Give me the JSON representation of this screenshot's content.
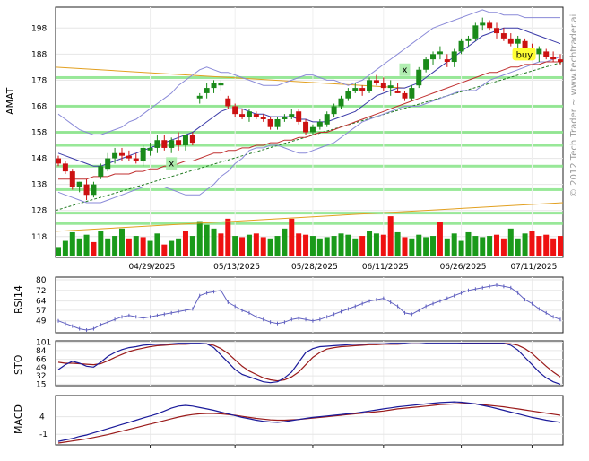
{
  "chart_data": {
    "type": "candlestick",
    "ticker": "AMAT",
    "copyright": "© 2012 Tech Trader ~ www.techtrader.ai",
    "dates": [
      "04/29/2025",
      "05/13/2025",
      "05/28/2025",
      "06/11/2025",
      "06/26/2025",
      "07/11/2025"
    ],
    "price_panel": {
      "ylabel": "AMAT",
      "yticks": [
        118,
        128,
        138,
        148,
        158,
        168,
        178,
        188,
        198
      ],
      "ylim": [
        110,
        206
      ],
      "candles": [
        [
          148,
          149,
          145,
          146
        ],
        [
          146,
          147,
          142,
          143
        ],
        [
          143,
          144,
          136,
          137
        ],
        [
          137,
          139,
          135,
          139
        ],
        [
          138,
          140,
          132,
          134
        ],
        [
          134,
          139,
          133,
          138
        ],
        [
          141,
          146,
          140,
          145
        ],
        [
          144,
          150,
          143,
          148
        ],
        [
          148,
          152,
          146,
          150
        ],
        [
          150,
          152,
          147,
          149
        ],
        [
          149,
          151,
          147,
          148
        ],
        [
          148,
          150,
          146,
          147
        ],
        [
          147,
          153,
          145,
          152
        ],
        [
          151,
          154,
          149,
          152
        ],
        [
          152,
          157,
          150,
          155
        ],
        [
          155,
          157,
          151,
          152
        ],
        [
          152,
          156,
          150,
          155
        ],
        [
          155,
          158,
          151,
          153
        ],
        [
          153,
          157,
          151,
          157
        ],
        [
          157,
          158,
          153,
          154
        ],
        [
          171,
          173,
          169,
          172
        ],
        [
          173,
          177,
          171,
          175
        ],
        [
          175,
          178,
          173,
          177
        ],
        [
          176,
          178,
          174,
          177
        ],
        [
          171,
          172,
          167,
          168
        ],
        [
          168,
          169,
          164,
          165
        ],
        [
          165,
          167,
          163,
          164
        ],
        [
          164,
          167,
          162,
          166
        ],
        [
          165,
          166,
          163,
          164
        ],
        [
          164,
          165,
          162,
          163
        ],
        [
          163,
          164,
          159,
          160
        ],
        [
          160,
          164,
          159,
          163
        ],
        [
          163,
          165,
          162,
          164
        ],
        [
          164,
          167,
          163,
          165
        ],
        [
          166,
          167,
          161,
          162
        ],
        [
          162,
          163,
          157,
          158
        ],
        [
          158,
          161,
          157,
          160
        ],
        [
          160,
          163,
          159,
          162
        ],
        [
          161,
          166,
          160,
          165
        ],
        [
          165,
          169,
          164,
          168
        ],
        [
          168,
          172,
          167,
          171
        ],
        [
          171,
          175,
          170,
          174
        ],
        [
          174,
          177,
          173,
          175
        ],
        [
          175,
          176,
          172,
          174
        ],
        [
          174,
          179,
          173,
          178
        ],
        [
          178,
          180,
          176,
          177
        ],
        [
          177,
          179,
          174,
          175
        ],
        [
          175,
          178,
          172,
          176
        ],
        [
          174,
          177,
          173,
          173
        ],
        [
          173,
          174,
          170,
          171
        ],
        [
          171,
          176,
          170,
          175
        ],
        [
          176,
          183,
          175,
          182
        ],
        [
          182,
          187,
          181,
          186
        ],
        [
          186,
          189,
          184,
          188
        ],
        [
          188,
          191,
          186,
          189
        ],
        [
          186,
          188,
          183,
          185
        ],
        [
          185,
          190,
          183,
          189
        ],
        [
          189,
          194,
          188,
          193
        ],
        [
          193,
          195,
          191,
          194
        ],
        [
          194,
          200,
          193,
          199
        ],
        [
          199,
          202,
          197,
          200
        ],
        [
          200,
          201,
          197,
          198
        ],
        [
          198,
          200,
          194,
          196
        ],
        [
          196,
          198,
          193,
          194
        ],
        [
          194,
          196,
          191,
          192
        ],
        [
          192,
          195,
          190,
          194
        ],
        [
          193,
          194,
          189,
          190
        ],
        [
          190,
          192,
          187,
          188
        ],
        [
          188,
          191,
          185,
          190
        ],
        [
          189,
          190,
          186,
          187
        ],
        [
          187,
          189,
          185,
          186
        ],
        [
          186,
          188,
          184,
          185
        ]
      ],
      "volume": [
        [
          7,
          0
        ],
        [
          12,
          0
        ],
        [
          19,
          0
        ],
        [
          14,
          0
        ],
        [
          17,
          0
        ],
        [
          11,
          1
        ],
        [
          20,
          0
        ],
        [
          14,
          0
        ],
        [
          16,
          0
        ],
        [
          22,
          0
        ],
        [
          14,
          1
        ],
        [
          16,
          0
        ],
        [
          15,
          1
        ],
        [
          12,
          0
        ],
        [
          18,
          0
        ],
        [
          9,
          1
        ],
        [
          12,
          0
        ],
        [
          14,
          0
        ],
        [
          20,
          1
        ],
        [
          16,
          0
        ],
        [
          28,
          0
        ],
        [
          25,
          0
        ],
        [
          22,
          0
        ],
        [
          18,
          1
        ],
        [
          30,
          1
        ],
        [
          16,
          0
        ],
        [
          15,
          1
        ],
        [
          17,
          0
        ],
        [
          18,
          1
        ],
        [
          15,
          1
        ],
        [
          14,
          0
        ],
        [
          16,
          0
        ],
        [
          22,
          0
        ],
        [
          30,
          1
        ],
        [
          18,
          1
        ],
        [
          17,
          1
        ],
        [
          16,
          0
        ],
        [
          14,
          0
        ],
        [
          15,
          0
        ],
        [
          16,
          0
        ],
        [
          18,
          0
        ],
        [
          17,
          0
        ],
        [
          14,
          0
        ],
        [
          16,
          1
        ],
        [
          20,
          0
        ],
        [
          18,
          0
        ],
        [
          17,
          1
        ],
        [
          32,
          1
        ],
        [
          19,
          0
        ],
        [
          15,
          1
        ],
        [
          14,
          0
        ],
        [
          17,
          0
        ],
        [
          15,
          0
        ],
        [
          16,
          0
        ],
        [
          27,
          1
        ],
        [
          14,
          0
        ],
        [
          18,
          0
        ],
        [
          12,
          0
        ],
        [
          19,
          0
        ],
        [
          16,
          0
        ],
        [
          15,
          0
        ],
        [
          16,
          0
        ],
        [
          17,
          1
        ],
        [
          14,
          1
        ],
        [
          22,
          0
        ],
        [
          14,
          0
        ],
        [
          18,
          0
        ],
        [
          20,
          1
        ],
        [
          16,
          1
        ],
        [
          17,
          1
        ],
        [
          14,
          1
        ],
        [
          16,
          1
        ]
      ],
      "sma_fast": [
        150,
        149,
        148,
        147,
        146,
        145,
        145,
        146,
        147,
        148,
        149,
        150,
        151,
        152,
        153,
        154,
        155,
        156,
        157,
        158,
        160,
        162,
        164,
        166,
        167,
        167,
        167,
        166,
        165,
        165,
        164,
        164,
        164,
        164,
        163,
        163,
        162,
        162,
        162,
        163,
        164,
        165,
        166,
        168,
        170,
        172,
        173,
        174,
        175,
        175,
        176,
        177,
        179,
        181,
        183,
        185,
        187,
        189,
        191,
        193,
        195,
        196,
        197,
        198,
        198,
        198,
        197,
        196,
        195,
        194,
        193,
        192
      ],
      "sma_slow": [
        140,
        140,
        140,
        140,
        140,
        141,
        141,
        141,
        142,
        142,
        142,
        143,
        143,
        144,
        144,
        145,
        145,
        146,
        147,
        147,
        148,
        149,
        150,
        150,
        151,
        151,
        152,
        152,
        153,
        153,
        154,
        154,
        155,
        155,
        156,
        156,
        157,
        158,
        158,
        159,
        160,
        161,
        162,
        163,
        164,
        165,
        166,
        167,
        168,
        169,
        170,
        171,
        172,
        173,
        174,
        175,
        176,
        177,
        178,
        179,
        180,
        181,
        181,
        182,
        183,
        183,
        184,
        184,
        184,
        185,
        185,
        185
      ],
      "bb_upper": [
        165,
        163,
        161,
        159,
        158,
        157,
        157,
        158,
        159,
        160,
        162,
        163,
        165,
        167,
        169,
        171,
        173,
        176,
        178,
        180,
        182,
        183,
        182,
        181,
        181,
        180,
        179,
        178,
        177,
        176,
        176,
        176,
        177,
        178,
        179,
        180,
        180,
        179,
        178,
        178,
        177,
        176,
        177,
        178,
        180,
        182,
        184,
        186,
        188,
        190,
        192,
        194,
        196,
        198,
        199,
        200,
        201,
        202,
        203,
        204,
        205,
        204,
        204,
        203,
        203,
        203,
        202,
        202,
        202,
        202,
        202,
        202
      ],
      "bb_lower": [
        135,
        134,
        133,
        132,
        131,
        131,
        131,
        132,
        133,
        134,
        135,
        136,
        137,
        137,
        137,
        137,
        136,
        135,
        134,
        134,
        134,
        136,
        138,
        141,
        143,
        146,
        148,
        151,
        152,
        152,
        153,
        153,
        152,
        151,
        150,
        150,
        151,
        152,
        153,
        154,
        156,
        158,
        160,
        162,
        163,
        164,
        165,
        166,
        167,
        168,
        168,
        168,
        169,
        170,
        171,
        172,
        173,
        174,
        174,
        174,
        176,
        178,
        179,
        180,
        181,
        182,
        183,
        184,
        185,
        185,
        186,
        187
      ],
      "trend_upper": {
        "from": 183,
        "to": 175
      },
      "trend_lower": {
        "from": 128,
        "to": 185
      },
      "trend_long": {
        "from": 120,
        "to": 131
      },
      "h_levels": [
        123,
        127,
        136,
        145,
        153,
        158,
        168,
        179
      ],
      "markers": [
        {
          "label": "x",
          "i": 16,
          "v": 146
        },
        {
          "label": "x",
          "i": 49,
          "v": 182
        },
        {
          "label": "buy",
          "i": 66,
          "v": 188
        }
      ]
    },
    "rsi_panel": {
      "ylabel": "RSI14",
      "yticks": [
        80,
        72,
        64,
        57,
        49
      ],
      "ylim": [
        40,
        82
      ],
      "values": [
        49,
        47,
        45,
        43,
        42,
        43,
        46,
        48,
        50,
        52,
        53,
        52,
        51,
        52,
        53,
        54,
        55,
        56,
        57,
        58,
        68,
        70,
        71,
        72,
        63,
        60,
        57,
        55,
        52,
        50,
        48,
        47,
        48,
        50,
        51,
        50,
        49,
        50,
        52,
        54,
        56,
        58,
        60,
        62,
        64,
        65,
        66,
        63,
        60,
        55,
        54,
        57,
        60,
        62,
        64,
        66,
        68,
        70,
        72,
        73,
        74,
        75,
        76,
        75,
        74,
        70,
        65,
        62,
        58,
        55,
        52,
        50
      ]
    },
    "sto_panel": {
      "ylabel": "STO",
      "yticks": [
        101,
        84,
        66,
        49,
        32,
        15
      ],
      "ylim": [
        12,
        104
      ],
      "k": [
        45,
        55,
        62,
        58,
        52,
        50,
        60,
        72,
        80,
        86,
        90,
        92,
        95,
        96,
        97,
        97,
        98,
        99,
        99,
        99,
        99,
        98,
        90,
        75,
        60,
        45,
        35,
        30,
        25,
        20,
        18,
        20,
        28,
        40,
        60,
        80,
        88,
        92,
        93,
        94,
        95,
        96,
        97,
        97,
        98,
        98,
        98,
        99,
        99,
        99,
        98,
        98,
        99,
        99,
        99,
        99,
        99,
        99,
        99,
        99,
        99,
        99,
        99,
        99,
        95,
        85,
        70,
        55,
        40,
        28,
        20,
        15
      ],
      "d": [
        60,
        58,
        58,
        57,
        56,
        55,
        57,
        63,
        70,
        76,
        82,
        86,
        89,
        92,
        94,
        95,
        96,
        97,
        97,
        98,
        98,
        98,
        95,
        88,
        78,
        65,
        52,
        42,
        35,
        28,
        24,
        22,
        24,
        30,
        40,
        55,
        70,
        80,
        87,
        90,
        92,
        93,
        94,
        95,
        96,
        96,
        97,
        97,
        97,
        98,
        98,
        98,
        98,
        98,
        98,
        98,
        98,
        99,
        99,
        99,
        99,
        99,
        99,
        99,
        98,
        95,
        88,
        78,
        65,
        52,
        40,
        30
      ]
    },
    "macd_panel": {
      "ylabel": "MACD",
      "yticks": [
        4,
        -1
      ],
      "ylim": [
        -4,
        10
      ],
      "macd": [
        -3,
        -2.6,
        -2.2,
        -1.6,
        -1.2,
        -0.6,
        0,
        0.6,
        1.2,
        1.8,
        2.4,
        3,
        3.6,
        4.2,
        4.8,
        5.6,
        6.4,
        7,
        7.2,
        7,
        6.6,
        6.2,
        5.8,
        5.3,
        4.8,
        4.3,
        3.8,
        3.4,
        3,
        2.7,
        2.5,
        2.4,
        2.6,
        2.9,
        3.2,
        3.5,
        3.8,
        4,
        4.2,
        4.4,
        4.6,
        4.8,
        5,
        5.3,
        5.6,
        5.9,
        6.2,
        6.5,
        6.8,
        7,
        7.2,
        7.4,
        7.6,
        7.8,
        8,
        8.1,
        8.2,
        8.1,
        7.9,
        7.6,
        7.2,
        6.8,
        6.3,
        5.8,
        5.3,
        4.8,
        4.3,
        3.8,
        3.4,
        3,
        2.7,
        2.4
      ],
      "signal": [
        -3.5,
        -3.2,
        -2.9,
        -2.6,
        -2.3,
        -1.9,
        -1.5,
        -1.1,
        -0.6,
        -0.1,
        0.4,
        0.9,
        1.4,
        1.9,
        2.4,
        2.9,
        3.4,
        3.9,
        4.3,
        4.6,
        4.8,
        4.9,
        4.9,
        4.8,
        4.6,
        4.4,
        4.1,
        3.8,
        3.5,
        3.3,
        3.1,
        3,
        3,
        3.1,
        3.2,
        3.4,
        3.6,
        3.8,
        4,
        4.2,
        4.4,
        4.6,
        4.8,
        5,
        5.2,
        5.4,
        5.6,
        5.9,
        6.2,
        6.4,
        6.6,
        6.8,
        7,
        7.2,
        7.4,
        7.5,
        7.6,
        7.7,
        7.7,
        7.6,
        7.4,
        7.2,
        7,
        6.8,
        6.5,
        6.2,
        5.9,
        5.6,
        5.3,
        5,
        4.7,
        4.4
      ]
    },
    "colors": {
      "up": "#1a8a1a",
      "down": "#cc1111",
      "vol_up": "#1a9a1a",
      "vol_down": "#ee1111",
      "bb": "#8a8ad8",
      "sma_fast": "#3a3aa8",
      "sma_slow": "#c03030",
      "trend_up": "#e2a020",
      "trend_green": "#207a20",
      "level": "#7ee27e",
      "rsi": "#6060c0",
      "sto_k": "#1a1a9a",
      "sto_d": "#9a1a1a",
      "macd": "#1a1a9a",
      "signal": "#9a1a1a",
      "buy_bg": "#ffff33",
      "x_bg": "#a8eca8"
    }
  }
}
